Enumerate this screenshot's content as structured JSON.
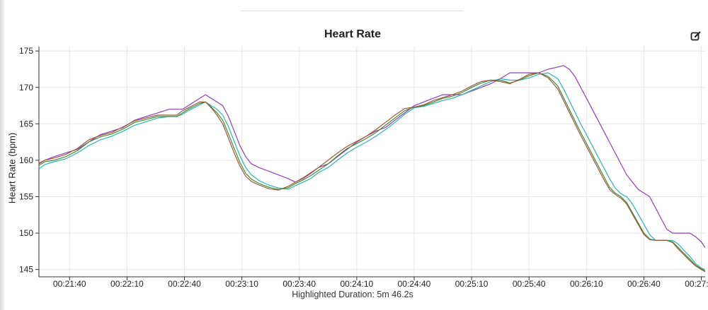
{
  "chart_data": {
    "type": "line",
    "title": "Heart Rate",
    "ylabel": "Heart Rate (bpm)",
    "xlabel": "",
    "ylim": [
      144,
      175.6
    ],
    "xlim": [
      1284,
      1632
    ],
    "y_ticks": [
      145,
      150,
      155,
      160,
      165,
      170,
      175
    ],
    "x_ticks": [
      {
        "t": 1300,
        "label": "00:21:40"
      },
      {
        "t": 1330,
        "label": "00:22:10"
      },
      {
        "t": 1360,
        "label": "00:22:40"
      },
      {
        "t": 1390,
        "label": "00:23:10"
      },
      {
        "t": 1420,
        "label": "00:23:40"
      },
      {
        "t": 1450,
        "label": "00:24:10"
      },
      {
        "t": 1480,
        "label": "00:24:40"
      },
      {
        "t": 1510,
        "label": "00:25:10"
      },
      {
        "t": 1540,
        "label": "00:25:40"
      },
      {
        "t": 1570,
        "label": "00:26:10"
      },
      {
        "t": 1600,
        "label": "00:26:40"
      },
      {
        "t": 1630,
        "label": "00:27:10"
      }
    ],
    "grid": true,
    "legend": "none",
    "series": [
      {
        "name": "Purple",
        "color": "#8d3fb0",
        "t": [
          1284,
          1287,
          1292,
          1298,
          1304,
          1310,
          1316,
          1322,
          1328,
          1334,
          1340,
          1346,
          1352,
          1356,
          1359,
          1362,
          1365,
          1368,
          1371,
          1374,
          1377,
          1380,
          1383,
          1386,
          1389,
          1392,
          1395,
          1399,
          1404,
          1409,
          1414,
          1418,
          1422,
          1426,
          1430,
          1435,
          1440,
          1445,
          1450,
          1455,
          1460,
          1465,
          1470,
          1475,
          1480,
          1485,
          1490,
          1495,
          1500,
          1505,
          1510,
          1515,
          1520,
          1525,
          1530,
          1535,
          1540,
          1545,
          1550,
          1555,
          1558,
          1561,
          1564,
          1567,
          1570,
          1573,
          1576,
          1579,
          1582,
          1585,
          1588,
          1591,
          1594,
          1597,
          1600,
          1603,
          1606,
          1609,
          1612,
          1615,
          1618,
          1621,
          1624,
          1627,
          1630,
          1632
        ],
        "v": [
          159.5,
          160,
          160.5,
          161,
          161.5,
          162.5,
          163.5,
          164,
          164.5,
          165.5,
          166,
          166.5,
          167,
          167,
          167,
          167.5,
          168,
          168.5,
          169,
          168.5,
          168,
          167.5,
          166,
          164,
          162,
          160.5,
          159.5,
          159,
          158.5,
          158,
          157.5,
          157,
          157.5,
          158.2,
          159,
          159.5,
          160.5,
          161.5,
          162.5,
          163.3,
          164,
          164.5,
          165.5,
          166.5,
          167.5,
          168,
          168.5,
          169,
          169,
          169,
          169.5,
          170,
          170.5,
          171.2,
          172,
          172,
          172,
          172,
          172.5,
          172.8,
          173,
          172.5,
          171.5,
          170,
          168.5,
          167,
          165.5,
          164,
          162.5,
          161,
          159.5,
          158,
          157,
          156,
          155.5,
          155,
          153.5,
          152,
          150.5,
          150,
          150,
          150,
          150,
          149.5,
          148.8,
          148
        ]
      },
      {
        "name": "Teal",
        "color": "#2bb5ad",
        "t": [
          1284,
          1287,
          1292,
          1298,
          1304,
          1310,
          1316,
          1322,
          1328,
          1334,
          1340,
          1346,
          1352,
          1356,
          1359,
          1362,
          1365,
          1368,
          1371,
          1374,
          1377,
          1380,
          1383,
          1386,
          1389,
          1392,
          1395,
          1399,
          1404,
          1409,
          1414,
          1418,
          1422,
          1426,
          1430,
          1435,
          1440,
          1445,
          1450,
          1455,
          1460,
          1465,
          1470,
          1475,
          1480,
          1485,
          1490,
          1495,
          1500,
          1505,
          1510,
          1515,
          1520,
          1525,
          1530,
          1535,
          1540,
          1545,
          1550,
          1555,
          1558,
          1561,
          1564,
          1567,
          1570,
          1573,
          1576,
          1579,
          1582,
          1585,
          1588,
          1591,
          1594,
          1597,
          1600,
          1603,
          1606,
          1609,
          1612,
          1615,
          1618,
          1621,
          1624,
          1627,
          1630,
          1632
        ],
        "v": [
          158.8,
          159.4,
          159.8,
          160.2,
          161,
          162,
          162.8,
          163.3,
          164,
          164.8,
          165.3,
          165.8,
          166,
          166,
          166.3,
          166.8,
          167.2,
          167.6,
          168,
          167.5,
          167,
          166.2,
          164.6,
          162.6,
          160.6,
          159,
          158,
          157.2,
          156.6,
          156.2,
          156,
          156.5,
          157,
          157.5,
          158.3,
          159,
          160,
          161,
          161.8,
          162.5,
          163.3,
          164.2,
          165.2,
          166.3,
          167.2,
          167.4,
          167.8,
          168.2,
          168.5,
          169,
          169.6,
          170.2,
          170.8,
          171.2,
          171,
          171,
          171.3,
          171.8,
          172,
          171.2,
          169.8,
          168.2,
          166.6,
          165,
          163.5,
          162,
          160.5,
          159,
          157.5,
          156.2,
          155.4,
          155,
          154,
          152.6,
          151.2,
          149.8,
          149,
          149,
          149,
          149,
          148.5,
          147.6,
          146.8,
          145.8,
          145.2,
          145
        ]
      },
      {
        "name": "Green",
        "color": "#3f8a3a",
        "t": [
          1284,
          1287,
          1292,
          1298,
          1304,
          1310,
          1316,
          1322,
          1328,
          1334,
          1340,
          1346,
          1352,
          1356,
          1359,
          1362,
          1365,
          1368,
          1371,
          1374,
          1377,
          1380,
          1383,
          1386,
          1389,
          1392,
          1395,
          1399,
          1404,
          1409,
          1414,
          1418,
          1422,
          1426,
          1430,
          1435,
          1440,
          1445,
          1450,
          1455,
          1460,
          1465,
          1470,
          1475,
          1480,
          1485,
          1490,
          1495,
          1500,
          1505,
          1510,
          1515,
          1520,
          1525,
          1530,
          1535,
          1540,
          1545,
          1550,
          1555,
          1558,
          1561,
          1564,
          1567,
          1570,
          1573,
          1576,
          1579,
          1582,
          1585,
          1588,
          1591,
          1594,
          1597,
          1600,
          1603,
          1606,
          1609,
          1612,
          1615,
          1618,
          1621,
          1624,
          1627,
          1630,
          1632
        ],
        "v": [
          159.3,
          159.8,
          160,
          160.5,
          161.3,
          162.5,
          163.2,
          163.6,
          164.3,
          165.2,
          165.6,
          166,
          166,
          166,
          166.5,
          167,
          167.4,
          167.8,
          168,
          167.3,
          166.5,
          165.5,
          163.6,
          161.6,
          159.7,
          158.2,
          157.4,
          156.8,
          156.3,
          156,
          156.2,
          156.8,
          157.3,
          157.9,
          158.6,
          159.5,
          160.6,
          161.6,
          162.3,
          163,
          163.8,
          164.8,
          165.8,
          166.8,
          167.3,
          167.5,
          168,
          168.5,
          168.8,
          169.3,
          170,
          170.6,
          171,
          171,
          170.6,
          171,
          171.6,
          172,
          171.5,
          170.2,
          168.6,
          167,
          165.4,
          163.8,
          162.3,
          160.8,
          159.3,
          157.8,
          156.3,
          155.5,
          155,
          154.2,
          152.8,
          151.4,
          150,
          149.2,
          149,
          149,
          149,
          148.8,
          148,
          147.2,
          146.4,
          145.6,
          145.1,
          144.8
        ]
      },
      {
        "name": "Brown",
        "color": "#9a5a3c",
        "t": [
          1284,
          1287,
          1292,
          1298,
          1304,
          1310,
          1316,
          1322,
          1328,
          1334,
          1340,
          1346,
          1352,
          1356,
          1359,
          1362,
          1365,
          1368,
          1371,
          1374,
          1377,
          1380,
          1383,
          1386,
          1389,
          1392,
          1395,
          1399,
          1404,
          1409,
          1414,
          1418,
          1422,
          1426,
          1430,
          1435,
          1440,
          1445,
          1450,
          1455,
          1460,
          1465,
          1470,
          1475,
          1480,
          1485,
          1490,
          1495,
          1500,
          1505,
          1510,
          1515,
          1520,
          1525,
          1530,
          1535,
          1540,
          1545,
          1550,
          1555,
          1558,
          1561,
          1564,
          1567,
          1570,
          1573,
          1576,
          1579,
          1582,
          1585,
          1588,
          1591,
          1594,
          1597,
          1600,
          1603,
          1606,
          1609,
          1612,
          1615,
          1618,
          1621,
          1624,
          1627,
          1630,
          1632
        ],
        "v": [
          159.6,
          160,
          160.3,
          160.8,
          161.6,
          162.8,
          163.4,
          163.8,
          164.6,
          165.4,
          165.8,
          166.2,
          166.2,
          166.2,
          166.8,
          167.2,
          167.6,
          168,
          168,
          167.2,
          166.2,
          165,
          163,
          161,
          159.2,
          157.8,
          157.1,
          156.6,
          156.1,
          155.9,
          156.4,
          157,
          157.6,
          158.3,
          159,
          160,
          161,
          161.9,
          162.6,
          163.3,
          164.2,
          165.2,
          166.2,
          167.1,
          167.3,
          167.6,
          168.2,
          168.6,
          169,
          169.5,
          170.2,
          170.8,
          171,
          170.8,
          170.5,
          171.1,
          171.8,
          172,
          171.3,
          169.8,
          168.2,
          166.6,
          165,
          163.4,
          161.9,
          160.4,
          158.9,
          157.4,
          156,
          155.3,
          154.8,
          154,
          152.6,
          151.2,
          149.8,
          149.1,
          149,
          149,
          149,
          148.7,
          147.8,
          147,
          146.2,
          145.5,
          145,
          144.7
        ]
      }
    ]
  },
  "footer": {
    "duration_label": "Highlighted Duration: 5m 46.2s"
  },
  "toolbar": {
    "edit_icon": "edit-icon"
  }
}
